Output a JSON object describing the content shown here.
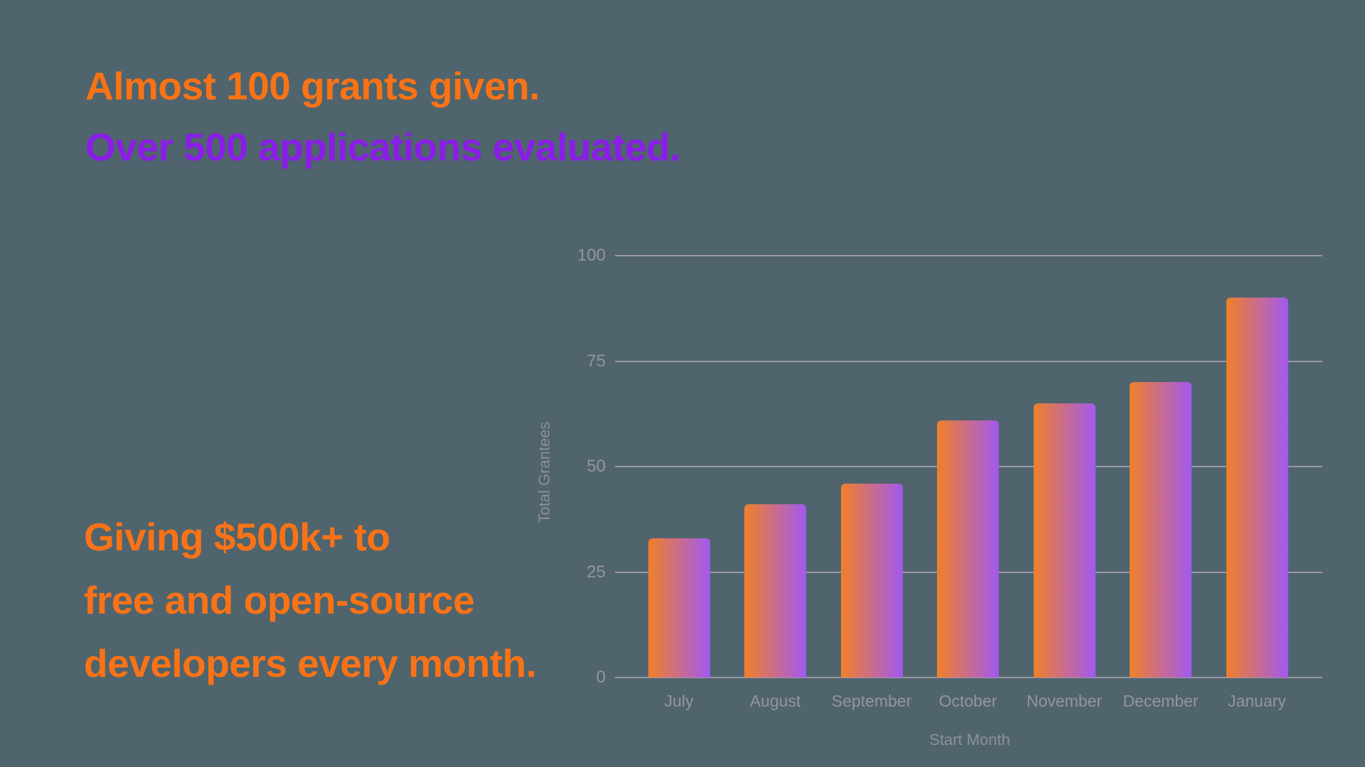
{
  "colors": {
    "background": "#4F646D",
    "orange": "#F97316",
    "purple": "#8B1DE8",
    "bar_gradient_start": "#F08028",
    "bar_gradient_end": "#A159F0",
    "gridline": "#9D97A5",
    "axis_text": "#96949D",
    "axis_title": "#8D9097"
  },
  "headline_top": {
    "line1": "Almost 100 grants given.",
    "line2": "Over 500 applications evaluated."
  },
  "headline_bottom": {
    "line1": "Giving $500k+ to",
    "line2": "free and open-source",
    "line3": "developers every month."
  },
  "chart_data": {
    "type": "bar",
    "title": "",
    "categories": [
      "July",
      "August",
      "September",
      "October",
      "November",
      "December",
      "January"
    ],
    "values": [
      33,
      41,
      46,
      61,
      65,
      70,
      90
    ],
    "xlabel": "Start Month",
    "ylabel": "Total Grantees",
    "ylim": [
      0,
      100
    ],
    "yticks": [
      0,
      25,
      50,
      75,
      100
    ],
    "grid": true,
    "legend_position": "none",
    "bar_gradient": [
      "#F08028",
      "#A159F0"
    ]
  }
}
